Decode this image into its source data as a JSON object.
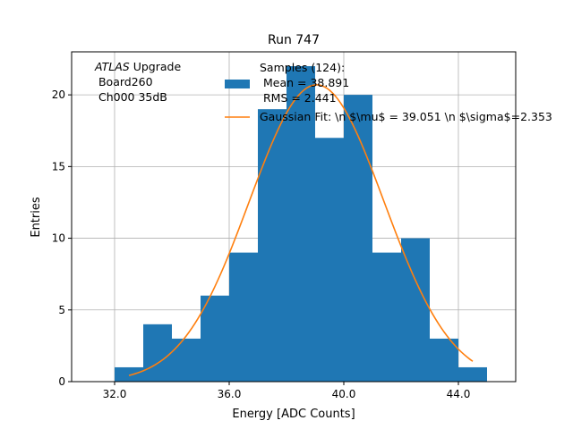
{
  "chart_data": {
    "type": "bar",
    "title": "Run 747",
    "xlabel": "Energy [ADC Counts]",
    "ylabel": "Entries",
    "xlim": [
      30.5,
      46.0
    ],
    "ylim": [
      0,
      23
    ],
    "xticks": [
      32.0,
      36.0,
      40.0,
      44.0
    ],
    "xtick_labels": [
      "32.0",
      "36.0",
      "40.0",
      "44.0"
    ],
    "yticks": [
      0,
      5,
      10,
      15,
      20
    ],
    "ytick_labels": [
      "0",
      "5",
      "10",
      "15",
      "20"
    ],
    "grid": true,
    "bin_edges": [
      32,
      33,
      34,
      35,
      36,
      37,
      38,
      39,
      40,
      41,
      42,
      43,
      44,
      45
    ],
    "values": [
      1,
      4,
      3,
      6,
      9,
      19,
      22,
      17,
      20,
      9,
      10,
      3,
      1
    ],
    "bar_color": "#1f77b4",
    "gaussian_fit": {
      "mu": 39.051,
      "sigma": 2.353,
      "amplitude": 20.7,
      "x_range": [
        32.5,
        44.5
      ],
      "color": "#ff7f0e"
    },
    "legend": {
      "placement": "top-center",
      "hist_label_lines": [
        "Samples (124):",
        " Mean = 38.891",
        " RMS = 2.441"
      ],
      "fit_label": "Gaussian Fit: \\n $\\mu$ = 39.051 \\n $\\sigma$=2.353"
    },
    "annotation": {
      "italic": "ATLAS",
      "rest": " Upgrade",
      "line2": " Board260",
      "line3": " Ch000 35dB"
    }
  }
}
